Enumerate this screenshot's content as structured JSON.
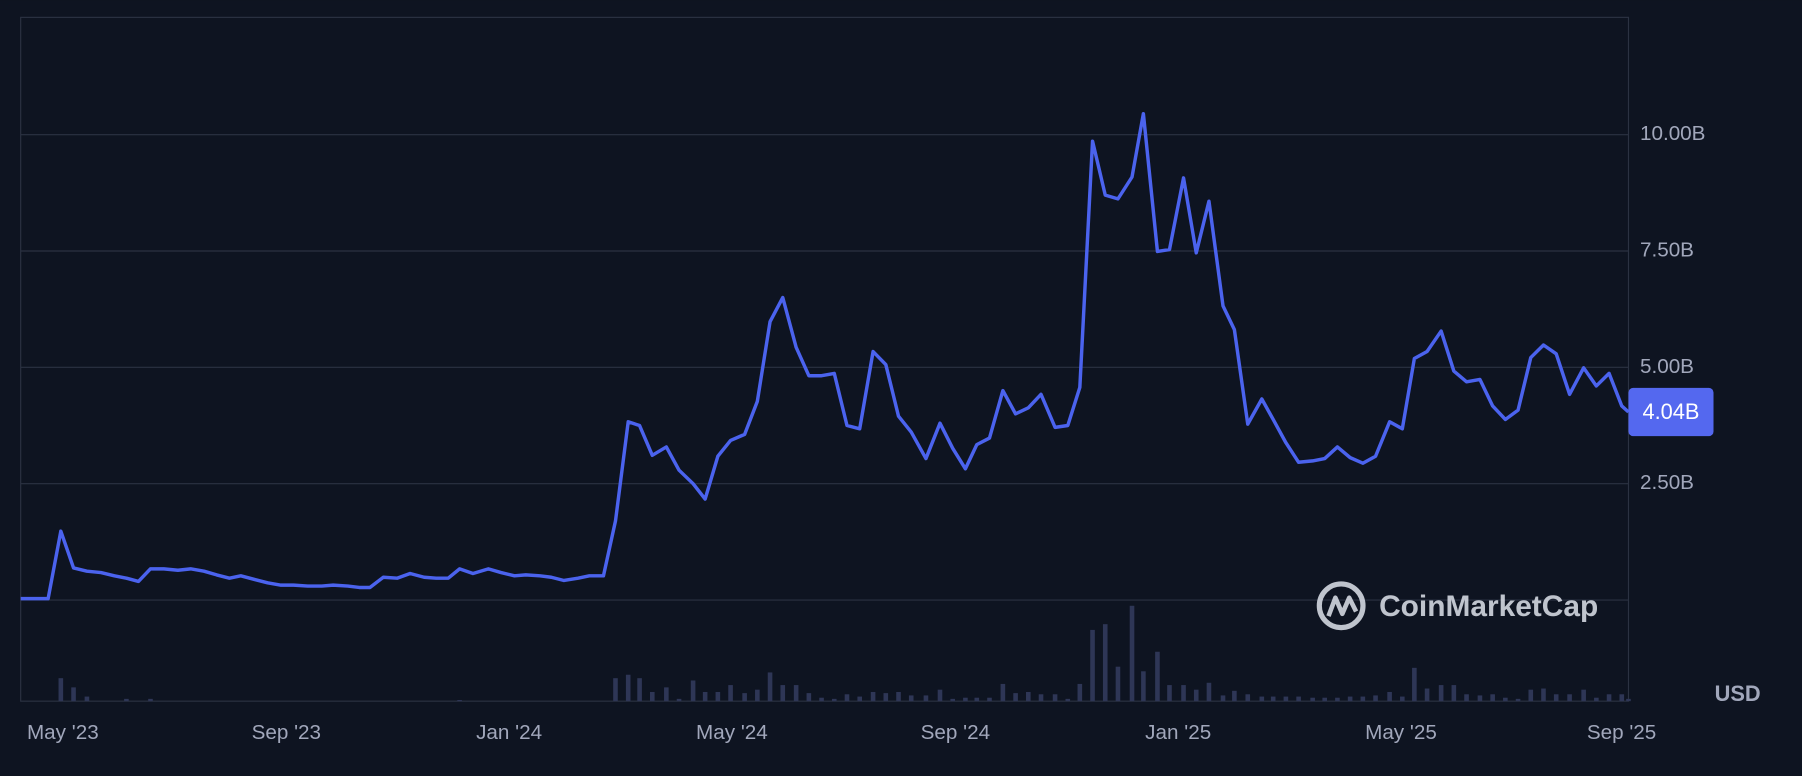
{
  "chart_data": {
    "type": "line",
    "currency": "USD",
    "watermark": "CoinMarketCap",
    "x": [
      2023.27,
      2023.311,
      2023.33,
      2023.349,
      2023.369,
      2023.39,
      2023.41,
      2023.428,
      2023.446,
      2023.464,
      2023.484,
      2023.505,
      2023.524,
      2023.544,
      2023.563,
      2023.582,
      2023.599,
      2023.62,
      2023.639,
      2023.659,
      2023.678,
      2023.699,
      2023.72,
      2023.737,
      2023.759,
      2023.776,
      2023.792,
      2023.812,
      2023.833,
      2023.852,
      2023.873,
      2023.891,
      2023.909,
      2023.926,
      2023.946,
      2023.969,
      2023.988,
      2024.008,
      2024.025,
      2024.046,
      2024.063,
      2024.082,
      2024.103,
      2024.12,
      2024.141,
      2024.159,
      2024.178,
      2024.195,
      2024.214,
      2024.235,
      2024.254,
      2024.275,
      2024.293,
      2024.312,
      2024.331,
      2024.352,
      2024.371,
      2024.39,
      2024.409,
      2024.429,
      2024.448,
      2024.467,
      2024.486,
      2024.505,
      2024.524,
      2024.544,
      2024.563,
      2024.582,
      2024.601,
      2024.623,
      2024.644,
      2024.663,
      2024.682,
      2024.699,
      2024.718,
      2024.738,
      2024.757,
      2024.776,
      2024.795,
      2024.816,
      2024.835,
      2024.853,
      2024.872,
      2024.891,
      2024.91,
      2024.931,
      2024.948,
      2024.969,
      2024.987,
      2025.008,
      2025.027,
      2025.046,
      2025.067,
      2025.084,
      2025.104,
      2025.125,
      2025.142,
      2025.161,
      2025.18,
      2025.201,
      2025.219,
      2025.238,
      2025.257,
      2025.276,
      2025.295,
      2025.316,
      2025.335,
      2025.353,
      2025.372,
      2025.393,
      2025.412,
      2025.431,
      2025.451,
      2025.47,
      2025.489,
      2025.508,
      2025.527,
      2025.546,
      2025.565,
      2025.585,
      2025.606,
      2025.625,
      2025.644,
      2025.663,
      2025.673
    ],
    "series": [
      {
        "color": "#4b63ee",
        "values": [
          0.03,
          0.03,
          1.48,
          0.69,
          0.62,
          0.59,
          0.52,
          0.47,
          0.4,
          0.67,
          0.67,
          0.64,
          0.67,
          0.62,
          0.54,
          0.47,
          0.52,
          0.44,
          0.37,
          0.32,
          0.32,
          0.3,
          0.3,
          0.32,
          0.3,
          0.27,
          0.27,
          0.49,
          0.47,
          0.57,
          0.49,
          0.47,
          0.47,
          0.67,
          0.57,
          0.67,
          0.59,
          0.52,
          0.54,
          0.52,
          0.49,
          0.42,
          0.47,
          0.52,
          0.52,
          1.7,
          3.83,
          3.75,
          3.11,
          3.29,
          2.79,
          2.5,
          2.17,
          3.09,
          3.43,
          3.56,
          4.27,
          5.98,
          6.5,
          5.43,
          4.82,
          4.82,
          4.87,
          3.75,
          3.68,
          5.34,
          5.06,
          3.95,
          3.61,
          3.04,
          3.8,
          3.26,
          2.82,
          3.34,
          3.48,
          4.5,
          4.0,
          4.13,
          4.42,
          3.71,
          3.75,
          4.57,
          9.86,
          8.7,
          8.62,
          9.09,
          10.45,
          7.49,
          7.53,
          9.07,
          7.46,
          8.57,
          6.32,
          5.81,
          3.78,
          4.32,
          3.88,
          3.38,
          2.96,
          2.99,
          3.04,
          3.29,
          3.06,
          2.94,
          3.09,
          3.83,
          3.68,
          5.19,
          5.34,
          5.78,
          4.92,
          4.69,
          4.74,
          4.17,
          3.88,
          4.08,
          5.21,
          5.48,
          5.29,
          4.42,
          4.99,
          4.6,
          4.87,
          4.17,
          4.04
        ]
      }
    ],
    "last_value_label": "4.04B",
    "volume": [
      0,
      0,
      20,
      12,
      4,
      0,
      0,
      2,
      0,
      2,
      0,
      0,
      0,
      0,
      0,
      0,
      0,
      0,
      0,
      0,
      0,
      0,
      0,
      0,
      0,
      0,
      0,
      0,
      0,
      0,
      0,
      0,
      0,
      1,
      0,
      0,
      0,
      0,
      0,
      0,
      0,
      0,
      0,
      0,
      0,
      20,
      23,
      20,
      8,
      12,
      2,
      18,
      8,
      8,
      14,
      7,
      10,
      25,
      14,
      14,
      7,
      3,
      2,
      6,
      4,
      8,
      7,
      8,
      5,
      5,
      10,
      2,
      3,
      3,
      3,
      15,
      7,
      8,
      6,
      6,
      2,
      15,
      62,
      67,
      30,
      83,
      26,
      43,
      14,
      14,
      10,
      16,
      5,
      9,
      6,
      4,
      4,
      4,
      4,
      3,
      3,
      3,
      4,
      4,
      5,
      8,
      4,
      29,
      11,
      14,
      14,
      6,
      5,
      6,
      3,
      2,
      10,
      11,
      6,
      6,
      10,
      3,
      6,
      6,
      2
    ],
    "volume_lim": [
      0,
      88
    ],
    "xlim": [
      2023.27,
      2025.673
    ],
    "xticks": [
      {
        "value": 2023.333,
        "label": "May '23"
      },
      {
        "value": 2023.667,
        "label": "Sep '23"
      },
      {
        "value": 2024.0,
        "label": "Jan '24"
      },
      {
        "value": 2024.333,
        "label": "May '24"
      },
      {
        "value": 2024.667,
        "label": "Sep '24"
      },
      {
        "value": 2025.0,
        "label": "Jan '25"
      },
      {
        "value": 2025.333,
        "label": "May '25"
      },
      {
        "value": 2025.667,
        "label": "Sep '25"
      }
    ],
    "ylim": [
      0,
      12.52
    ],
    "yticks": [
      {
        "value": 2.5,
        "label": "2.50B"
      },
      {
        "value": 5,
        "label": "5.00B"
      },
      {
        "value": 7.5,
        "label": "7.50B"
      },
      {
        "value": 10,
        "label": "10.00B"
      }
    ],
    "grid": true
  }
}
